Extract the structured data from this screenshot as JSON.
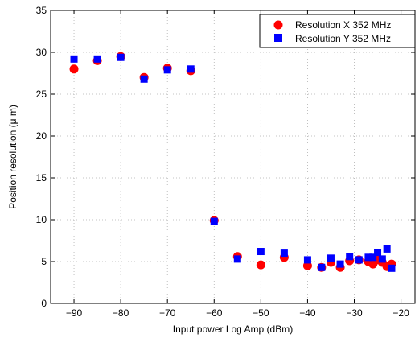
{
  "chart_data": {
    "type": "scatter",
    "title": "",
    "xlabel": "Input power Log Amp (dBm)",
    "ylabel": "Position resolution (μ m)",
    "xlim": [
      -95,
      -17
    ],
    "ylim": [
      0,
      35
    ],
    "xticks": [
      -90,
      -80,
      -70,
      -60,
      -50,
      -40,
      -30,
      -20
    ],
    "xtick_labels": [
      "−90",
      "−80",
      "−70",
      "−60",
      "−50",
      "−40",
      "−30",
      "−20"
    ],
    "yticks": [
      0,
      5,
      10,
      15,
      20,
      25,
      30,
      35
    ],
    "ytick_labels": [
      "0",
      "5",
      "10",
      "15",
      "20",
      "25",
      "30",
      "35"
    ],
    "grid": true,
    "legend_position": "top-right",
    "series": [
      {
        "name": "Resolution X 352 MHz",
        "marker": "circle",
        "color": "#ff0000",
        "x": [
          -90,
          -85,
          -80,
          -75,
          -70,
          -65,
          -60,
          -55,
          -50,
          -45,
          -40,
          -37,
          -35,
          -33,
          -31,
          -29,
          -27,
          -26,
          -25,
          -24,
          -23,
          -22
        ],
        "y": [
          28.0,
          29.0,
          29.5,
          27.0,
          28.1,
          27.8,
          9.9,
          5.6,
          4.6,
          5.5,
          4.5,
          4.3,
          4.9,
          4.3,
          5.1,
          5.2,
          5.0,
          4.7,
          5.2,
          4.9,
          4.4,
          4.7
        ]
      },
      {
        "name": "Resolution Y 352 MHz",
        "marker": "square",
        "color": "#0000ff",
        "x": [
          -90,
          -85,
          -80,
          -75,
          -70,
          -65,
          -60,
          -55,
          -50,
          -45,
          -40,
          -37,
          -35,
          -33,
          -31,
          -29,
          -27,
          -26,
          -25,
          -24,
          -23,
          -22
        ],
        "y": [
          29.2,
          29.2,
          29.4,
          26.8,
          27.9,
          28.0,
          9.8,
          5.3,
          6.2,
          6.0,
          5.2,
          4.3,
          5.4,
          4.7,
          5.6,
          5.2,
          5.5,
          5.5,
          6.1,
          5.3,
          6.5,
          4.2
        ]
      }
    ]
  }
}
